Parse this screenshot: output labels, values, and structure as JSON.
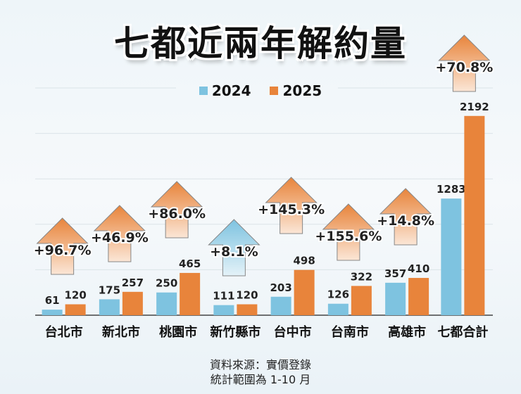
{
  "chart_data": {
    "type": "bar",
    "title": "七都近兩年解約量",
    "categories": [
      "台北市",
      "新北市",
      "桃園市",
      "新竹縣市",
      "台中市",
      "台南市",
      "高雄市",
      "七都合計"
    ],
    "series": [
      {
        "name": "2024",
        "color": "#7ec3e0",
        "values": [
          61,
          175,
          250,
          111,
          203,
          126,
          357,
          1283
        ]
      },
      {
        "name": "2025",
        "color": "#e8843b",
        "values": [
          120,
          257,
          465,
          120,
          498,
          322,
          410,
          2192
        ]
      }
    ],
    "growth_labels": [
      "+96.7%",
      "+46.9%",
      "+86.0%",
      "+8.1%",
      "+145.3%",
      "+155.6%",
      "+14.8%",
      "+70.8%"
    ],
    "growth_arrow_colors": [
      "orange",
      "orange",
      "orange",
      "blue",
      "orange",
      "orange",
      "orange",
      "orange"
    ],
    "ylim": [
      0,
      2500
    ],
    "grid": true,
    "legend_position": "top-center"
  },
  "footer": {
    "source": "資料來源：實價登錄",
    "range": "統計範圍為 1-10 月"
  }
}
